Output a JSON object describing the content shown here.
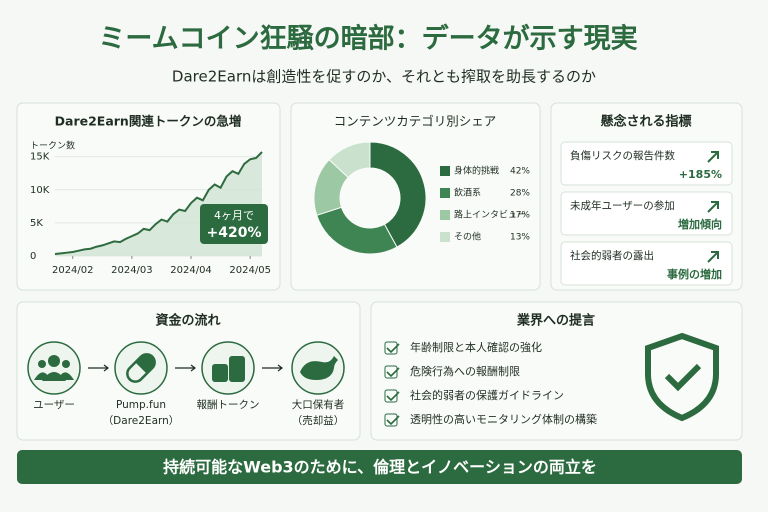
{
  "header": {
    "title": "ミームコイン狂騒の暗部：データが示す現実",
    "subtitle": "Dare2Earnは創造性を促すのか、それとも搾取を助長するのか"
  },
  "growth_chart": {
    "chart_data": {
      "type": "line",
      "title": "Dare2Earn関連トークンの急増",
      "y_label": "トークン数",
      "color": "#2e6b3f",
      "x": [
        -0.3,
        -0.2,
        -0.1,
        0,
        0.1,
        0.2,
        0.3,
        0.4,
        0.5,
        0.6,
        0.7,
        0.8,
        0.9,
        1.0,
        1.1,
        1.2,
        1.3,
        1.4,
        1.5,
        1.6,
        1.7,
        1.8,
        1.9,
        2.0,
        2.1,
        2.2,
        2.3,
        2.4,
        2.5,
        2.6,
        2.7,
        2.8,
        2.9,
        3.0,
        3.1,
        3.2
      ],
      "values": [
        300,
        400,
        500,
        600,
        800,
        1000,
        1100,
        1400,
        1600,
        1900,
        2200,
        2100,
        2600,
        3000,
        3400,
        4100,
        3900,
        4800,
        5500,
        5200,
        6300,
        7000,
        6800,
        8000,
        8800,
        8400,
        10000,
        10800,
        10300,
        12000,
        12800,
        12400,
        13900,
        14600,
        14800,
        15700
      ],
      "xlim": [
        -0.3,
        3.2
      ],
      "xticks": [
        {
          "value": 0,
          "label": "2024/02"
        },
        {
          "value": 1,
          "label": "2024/03"
        },
        {
          "value": 2,
          "label": "2024/04"
        },
        {
          "value": 3,
          "label": "2024/05"
        }
      ],
      "ylim": [
        0,
        16000
      ],
      "yticks": [
        0,
        {
          "value": 5000,
          "label": "5K"
        },
        {
          "value": 10000,
          "label": "10K"
        },
        {
          "value": 15000,
          "label": "15K"
        }
      ],
      "annotation": {
        "text": "4ヶ月で",
        "value": "+420%"
      }
    }
  },
  "share_chart": {
    "chart_data": {
      "type": "pie",
      "title": "コンテンツカテゴリ別シェア",
      "categories": [
        "身体的挑戦",
        "飲酒系",
        "路上インタビュー",
        "その他"
      ],
      "values": [
        42,
        28,
        17,
        13
      ],
      "value_labels": [
        "42%",
        "28%",
        "17%",
        "13%"
      ],
      "colors": [
        "#2c6a3f",
        "#3f8553",
        "#9cc8a4",
        "#c9e1cd"
      ]
    }
  },
  "indicators": {
    "title": "懸念される指標",
    "items": [
      {
        "label": "負傷リスクの報告件数",
        "value": "+185%"
      },
      {
        "label": "未成年ユーザーの参加",
        "value": "増加傾向"
      },
      {
        "label": "社会的弱者の露出",
        "value": "事例の増加"
      }
    ]
  },
  "flow": {
    "title": "資金の流れ",
    "steps": [
      {
        "label": "ユーザー"
      },
      {
        "label": "Pump.fun",
        "sub": "（Dare2Earn）"
      },
      {
        "label": "報酬トークン"
      },
      {
        "label": "大口保有者",
        "sub": "（売却益）"
      }
    ]
  },
  "proposals": {
    "title": "業界への提言",
    "items": [
      "年齢制限と本人確認の強化",
      "危険行為への報酬制限",
      "社会的弱者の保護ガイドライン",
      "透明性の高いモニタリング体制の構築"
    ]
  },
  "footer": {
    "text": "持続可能なWeb3のために、倫理とイノベーションの両立を"
  }
}
